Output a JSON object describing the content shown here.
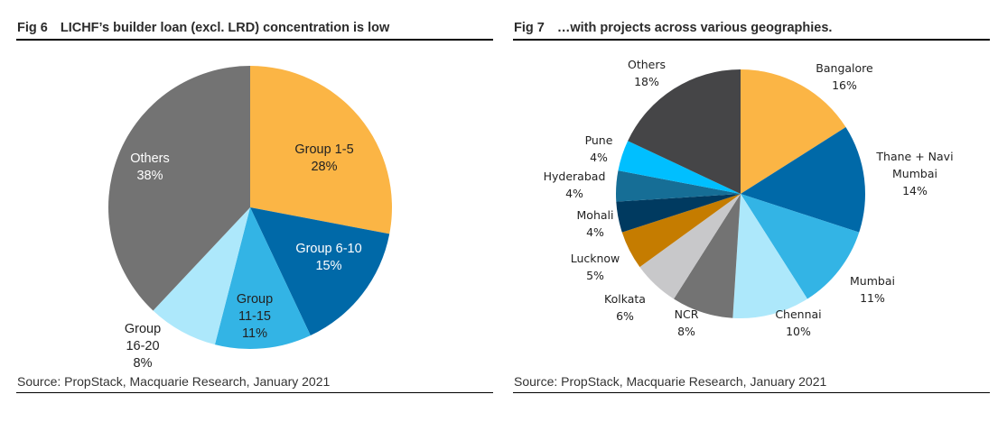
{
  "figures": [
    {
      "fig_number": "Fig 6",
      "title": "LICHF’s builder loan (excl. LRD) concentration is low",
      "source": "Source: PropStack, Macquarie Research, January 2021"
    },
    {
      "fig_number": "Fig 7",
      "title": "…with projects across various geographies.",
      "source": "Source: PropStack, Macquarie Research, January 2021"
    }
  ],
  "chart_data": [
    {
      "type": "pie",
      "title": "LICHF’s builder loan (excl. LRD) concentration is low",
      "start": "12 o'clock, clockwise",
      "slices": [
        {
          "label": "Group 1-5",
          "value": 28,
          "display": "28%",
          "color": "#FBB545",
          "text_color": "#222222"
        },
        {
          "label": "Group 6-10",
          "value": 15,
          "display": "15%",
          "color": "#0069A8",
          "text_color": "#FFFFFF"
        },
        {
          "label": "Group 11-15",
          "label_lines": [
            "Group",
            "11-15"
          ],
          "value": 11,
          "display": "11%",
          "color": "#33B4E5",
          "text_color": "#222222"
        },
        {
          "label": "Group 16-20",
          "label_lines": [
            "Group",
            "16-20"
          ],
          "value": 8,
          "display": "8%",
          "color": "#ADE8FB",
          "text_color": "#222222"
        },
        {
          "label": "Others",
          "value": 38,
          "display": "38%",
          "color": "#737373",
          "text_color": "#FFFFFF"
        }
      ]
    },
    {
      "type": "pie",
      "title": "…with projects across various geographies.",
      "start": "12 o'clock, clockwise",
      "slices": [
        {
          "label": "Bangalore",
          "value": 16,
          "display": "16%",
          "color": "#FBB545"
        },
        {
          "label": "Thane + Navi Mumbai",
          "label_lines": [
            "Thane + Navi",
            "Mumbai"
          ],
          "value": 14,
          "display": "14%",
          "color": "#0069A8"
        },
        {
          "label": "Mumbai",
          "value": 11,
          "display": "11%",
          "color": "#33B4E5"
        },
        {
          "label": "Chennai",
          "value": 10,
          "display": "10%",
          "color": "#ADE8FB"
        },
        {
          "label": "NCR",
          "value": 8,
          "display": "8%",
          "color": "#737373"
        },
        {
          "label": "Kolkata",
          "value": 6,
          "display": "6%",
          "color": "#C8C8CA"
        },
        {
          "label": "Lucknow",
          "value": 5,
          "display": "5%",
          "color": "#C57C00"
        },
        {
          "label": "Mohali",
          "value": 4,
          "display": "4%",
          "color": "#003A60"
        },
        {
          "label": "Hyderabad",
          "value": 4,
          "display": "4%",
          "color": "#166E96"
        },
        {
          "label": "Pune",
          "value": 4,
          "display": "4%",
          "color": "#00BFFF"
        },
        {
          "label": "Others",
          "value": 18,
          "display": "18%",
          "color": "#454547"
        }
      ]
    }
  ]
}
